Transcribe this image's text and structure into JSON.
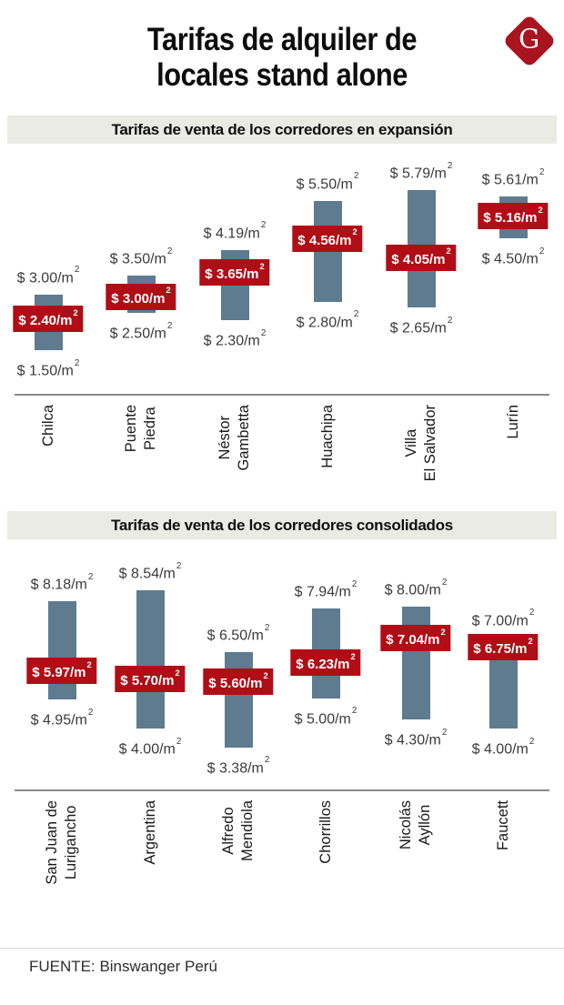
{
  "title_lines": [
    "Tarifas de alquiler de",
    "locales stand alone"
  ],
  "logo": {
    "letter": "G"
  },
  "source": "FUENTE: Binswanger Perú",
  "value_format": {
    "prefix": "$ ",
    "suffix": "/m",
    "sup": "2"
  },
  "colors": {
    "bar": "#5e7b90",
    "badge": "#b00d16",
    "badge_text": "#ffffff",
    "band_bg": "#e9ebe4",
    "logo": "#a81420"
  },
  "chart_data": [
    {
      "type": "bar",
      "subtype": "floating-range-bar",
      "title": "Tarifas de venta de los corredores en expansión",
      "categories": [
        "Chilca",
        "Puente Piedra",
        "Néstor Gambetta",
        "Huachipa",
        "Villa El Salvador",
        "Lurín"
      ],
      "category_lines": [
        [
          "Chilca"
        ],
        [
          "Puente",
          "Piedra"
        ],
        [
          "Néstor",
          "Gambetta"
        ],
        [
          "Huachipa"
        ],
        [
          "Villa",
          "El Salvador"
        ],
        [
          "Lurín"
        ]
      ],
      "series": [
        {
          "name": "max",
          "values": [
            3.0,
            3.5,
            4.19,
            5.5,
            5.79,
            5.61
          ],
          "display": [
            "3.00",
            "3.50",
            "4.19",
            "5.50",
            "5.79",
            "5.61"
          ]
        },
        {
          "name": "avg",
          "values": [
            2.4,
            3.0,
            3.65,
            4.56,
            4.05,
            5.16
          ],
          "display": [
            "2.40",
            "3.00",
            "3.65",
            "4.56",
            "4.05",
            "5.16"
          ]
        },
        {
          "name": "min",
          "values": [
            1.5,
            2.5,
            2.3,
            2.8,
            2.65,
            4.5
          ],
          "display": [
            "1.50",
            "2.50",
            "2.30",
            "2.80",
            "2.65",
            "4.50"
          ]
        }
      ],
      "ylim": [
        1.5,
        5.79
      ],
      "unit": "$/m²",
      "grid": false,
      "legend": false
    },
    {
      "type": "bar",
      "subtype": "floating-range-bar",
      "title": "Tarifas de venta de los corredores consolidados",
      "categories": [
        "San Juan de Lurigancho",
        "Argentina",
        "Alfredo Mendiola",
        "Chorrillos",
        "Nicolás Ayllón",
        "Faucett"
      ],
      "category_lines": [
        [
          "San Juan de",
          "Lurigancho"
        ],
        [
          "Argentina"
        ],
        [
          "Alfredo",
          "Mendiola"
        ],
        [
          "Chorrillos"
        ],
        [
          "Nicolás",
          "Ayllón"
        ],
        [
          "Faucett"
        ]
      ],
      "series": [
        {
          "name": "max",
          "values": [
            8.18,
            8.54,
            6.5,
            7.94,
            8.0,
            7.0
          ],
          "display": [
            "8.18",
            "8.54",
            "6.50",
            "7.94",
            "8.00",
            "7.00"
          ]
        },
        {
          "name": "avg",
          "values": [
            5.97,
            5.7,
            5.6,
            6.23,
            7.04,
            6.75
          ],
          "display": [
            "5.97",
            "5.70",
            "5.60",
            "6.23",
            "7.04",
            "6.75"
          ]
        },
        {
          "name": "min",
          "values": [
            4.95,
            4.0,
            3.38,
            5.0,
            4.3,
            4.0
          ],
          "display": [
            "4.95",
            "4.00",
            "3.38",
            "5.00",
            "4.30",
            "4.00"
          ]
        }
      ],
      "ylim": [
        3.38,
        8.54
      ],
      "unit": "$/m²",
      "grid": false,
      "legend": false
    }
  ]
}
